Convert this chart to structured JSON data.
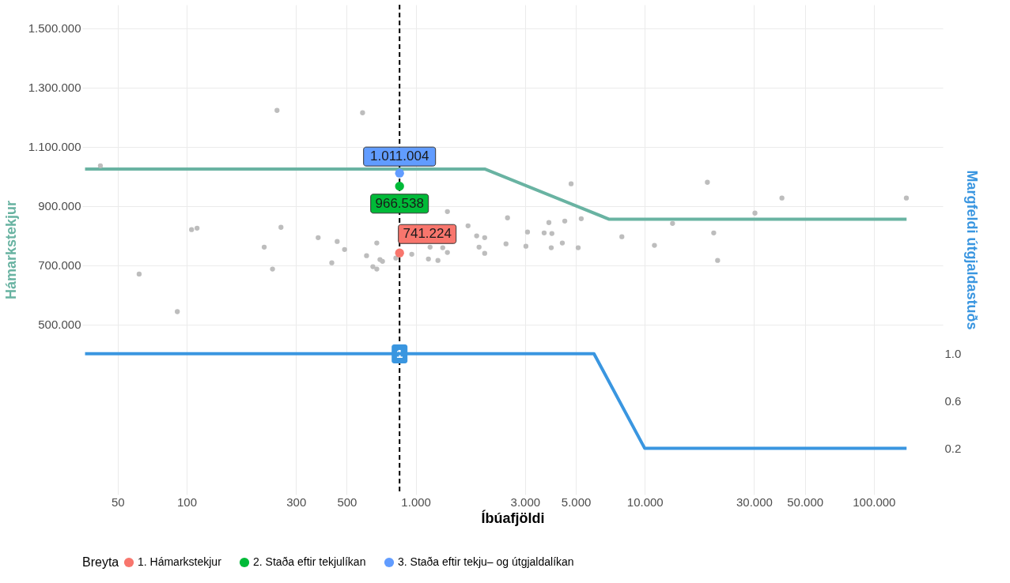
{
  "chart_data": {
    "type": "scatter",
    "xlabel": "Íbúafjöldi",
    "ylabel": "Hámarkstekjur",
    "y2label": "Margfeldi útgjaldastuðs",
    "legend_title": "Breyta",
    "legend": "bottom",
    "log": "x",
    "grid": true,
    "marker": "circle",
    "xlim": [
      35,
      200000
    ],
    "xticks": [
      50,
      100,
      300,
      500,
      {
        "value": 1000,
        "label": "1.000"
      },
      {
        "value": 3000,
        "label": "3.000"
      },
      {
        "value": 5000,
        "label": "5.000"
      },
      {
        "value": 10000,
        "label": "10.000"
      },
      {
        "value": 30000,
        "label": "30.000"
      },
      {
        "value": 50000,
        "label": "50.000"
      },
      {
        "value": 100000,
        "label": "100.000"
      }
    ],
    "ylim": [
      -75000,
      1580000
    ],
    "yticks": [
      {
        "value": 500000,
        "label": "500.000"
      },
      {
        "value": 700000,
        "label": "700.000"
      },
      {
        "value": 900000,
        "label": "900.000"
      },
      {
        "value": 1100000,
        "label": "1.100.000"
      },
      {
        "value": 1300000,
        "label": "1.300.000"
      },
      {
        "value": 1500000,
        "label": "1.500.000"
      }
    ],
    "y2lim": [
      -0.19,
      3.95
    ],
    "y2ticks": [
      {
        "value": 0.2,
        "label": "0.2"
      },
      {
        "value": 0.6,
        "label": "0.6"
      },
      {
        "value": 1,
        "label": "1.0"
      }
    ],
    "ref_lines": [
      {
        "axis": "x",
        "value": 850,
        "line_style": "dashed",
        "color": "#000000"
      }
    ],
    "annotations": [
      {
        "text": "1",
        "x": 850,
        "y": 400000
      }
    ],
    "series": [
      {
        "type": "line",
        "marker": "none",
        "color": "#69b3a2",
        "x": [
          36,
          2000,
          7000,
          139000
        ],
        "values": [
          1025000,
          1025000,
          855000,
          855000
        ]
      },
      {
        "type": "line",
        "marker": "none",
        "axis": "y2",
        "color": "#3a96e0",
        "x": [
          36,
          6000,
          10000,
          139000
        ],
        "values": [
          1,
          1,
          0.2,
          0.2
        ]
      },
      {
        "color": "#bdbdbd",
        "x": [
          42,
          62,
          91,
          105,
          111,
          218,
          237,
          248,
          258,
          375,
          430,
          454,
          489,
          586,
          610,
          650,
          676,
          676,
          698,
          716,
          819,
          961,
          1136,
          1155,
          1250,
          1312,
          1375,
          1375,
          1692,
          1845,
          1890,
          2000,
          2000,
          2478,
          2516,
          3027,
          3076,
          3636,
          3814,
          3905,
          3930,
          4365,
          4475,
          4768,
          5119,
          5280,
          7943,
          11020,
          13220,
          18760,
          20000,
          20800,
          30270,
          39700,
          138700
        ],
        "values": [
          1036000,
          670000,
          543000,
          820000,
          825000,
          761000,
          687000,
          1223000,
          828000,
          793000,
          708000,
          780000,
          753000,
          1215000,
          732000,
          695000,
          687000,
          775000,
          719000,
          713000,
          724000,
          737000,
          721000,
          761000,
          716000,
          759000,
          743000,
          881000,
          833000,
          799000,
          761000,
          793000,
          740000,
          772000,
          860000,
          764000,
          812000,
          809000,
          844000,
          759000,
          807000,
          775000,
          849000,
          975000,
          759000,
          857000,
          796000,
          767000,
          841000,
          980000,
          809000,
          716000,
          876000,
          927000,
          927000
        ]
      },
      {
        "name": "1. Hámarkstekjur",
        "color": "#f8766d",
        "x": [
          850
        ],
        "values": [
          741224
        ],
        "value_labels": [
          "741.224"
        ]
      },
      {
        "name": "2. Staða eftir tekjulíkan",
        "color": "#00ba38",
        "x": [
          850
        ],
        "values": [
          966538
        ],
        "value_labels": [
          "966.538"
        ]
      },
      {
        "name": "3. Staða eftir tekju– og útgjaldalíkan",
        "color": "#619cff",
        "x": [
          850
        ],
        "values": [
          1011004
        ],
        "value_labels": [
          "1.011.004"
        ]
      }
    ]
  }
}
